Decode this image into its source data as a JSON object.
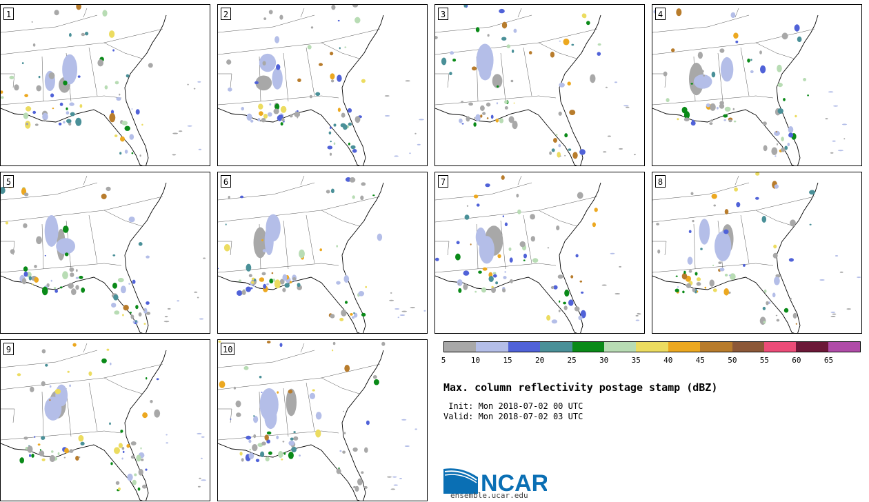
{
  "panels": [
    {
      "label": "1"
    },
    {
      "label": "2"
    },
    {
      "label": "3"
    },
    {
      "label": "4"
    },
    {
      "label": "5"
    },
    {
      "label": "6"
    },
    {
      "label": "7"
    },
    {
      "label": "8"
    },
    {
      "label": "9"
    },
    {
      "label": "10"
    }
  ],
  "colorbar": {
    "colors": [
      "#a8a8a8",
      "#b4bee8",
      "#5062d8",
      "#4a9098",
      "#0a8a18",
      "#b8dcb4",
      "#ecdc60",
      "#eca820",
      "#b87c2c",
      "#8c5838",
      "#ec4c78",
      "#6c1838",
      "#b04ca8"
    ],
    "labels": [
      "5",
      "10",
      "15",
      "20",
      "25",
      "30",
      "35",
      "40",
      "45",
      "50",
      "55",
      "60",
      "65"
    ]
  },
  "title": "Max. column reflectivity postage stamp (dBZ)",
  "init_text": " Init: Mon 2018-07-02 00 UTC",
  "valid_text": "Valid: Mon 2018-07-02 03 UTC",
  "logo": {
    "text": "NCAR",
    "url": "ensemble.ucar.edu",
    "color": "#0a6fb4"
  }
}
